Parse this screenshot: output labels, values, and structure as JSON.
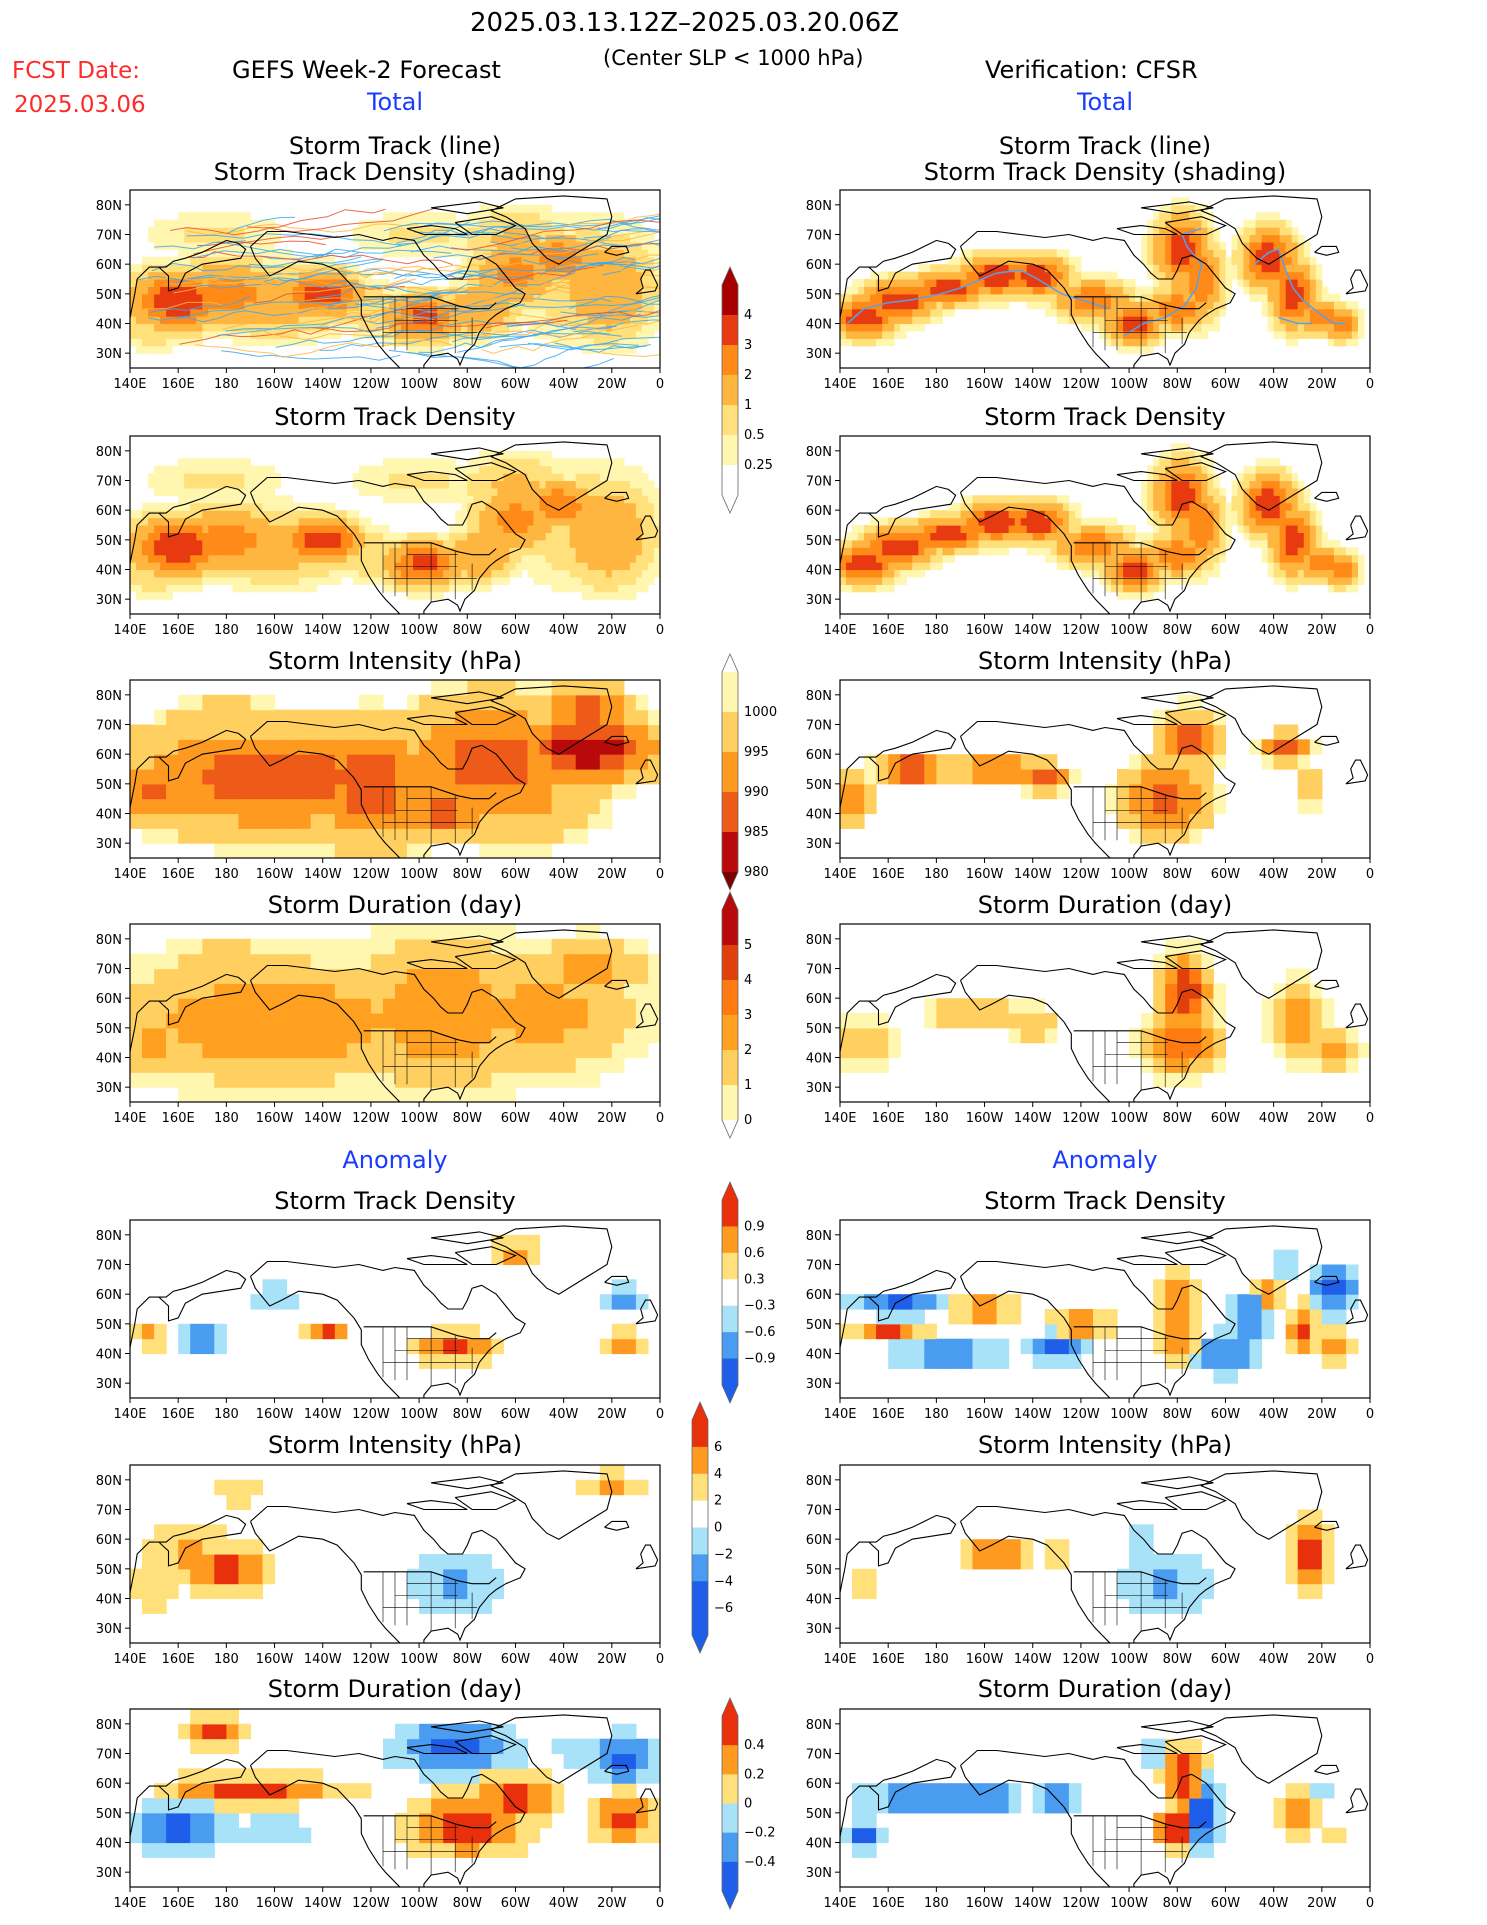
{
  "header": {
    "date_range": "2025.03.13.12Z–2025.03.20.06Z",
    "criterion": "(Center SLP < 1000 hPa)",
    "fcst_label": "FCST Date:",
    "fcst_date": "2025.03.06",
    "left_model": "GEFS Week-2 Forecast",
    "right_model": "Verification: CFSR"
  },
  "sections": {
    "total": "Total",
    "anomaly": "Anomaly"
  },
  "panel_titles": {
    "track_line": "Storm Track (line)",
    "track_shading": "Storm Track Density (shading)",
    "density": "Storm Track Density",
    "intensity": "Storm Intensity (hPa)",
    "duration": "Storm Duration (day)"
  },
  "axes": {
    "lon_labels": [
      "140E",
      "160E",
      "180",
      "160W",
      "140W",
      "120W",
      "100W",
      "80W",
      "60W",
      "40W",
      "20W",
      "0"
    ],
    "lat_labels": [
      "80N",
      "70N",
      "60N",
      "50N",
      "40N",
      "30N"
    ]
  },
  "colorbars": {
    "density_total": [
      "4",
      "3",
      "2",
      "1",
      "0.5",
      "0.25"
    ],
    "intensity_total": [
      "1000",
      "995",
      "990",
      "985",
      "980"
    ],
    "duration_total": [
      "5",
      "4",
      "3",
      "2",
      "1",
      "0"
    ],
    "density_anom": [
      "0.9",
      "0.6",
      "0.3",
      "−0.3",
      "−0.6",
      "−0.9"
    ],
    "intensity_anom": [
      "6",
      "4",
      "2",
      "0",
      "−2",
      "−4",
      "−6"
    ],
    "duration_anom": [
      "0.4",
      "0.2",
      "0",
      "−0.2",
      "−0.4"
    ]
  },
  "colors": {
    "seq_total": [
      "#ffffff",
      "#fff6b0",
      "#ffe07a",
      "#ffb640",
      "#ff8a18",
      "#e83a10",
      "#a80000"
    ],
    "intensity_seq": [
      "#fff6b0",
      "#ffd060",
      "#ff9a20",
      "#ee5a18",
      "#b80a0a",
      "#7a0000"
    ],
    "div_anom": [
      "#1e5ee8",
      "#4a9cf0",
      "#a8e2f8",
      "#ffffff",
      "#ffe07a",
      "#ff9a20",
      "#e8300c"
    ],
    "track_lines": "#3ca8f0",
    "coast": "#000000"
  }
}
